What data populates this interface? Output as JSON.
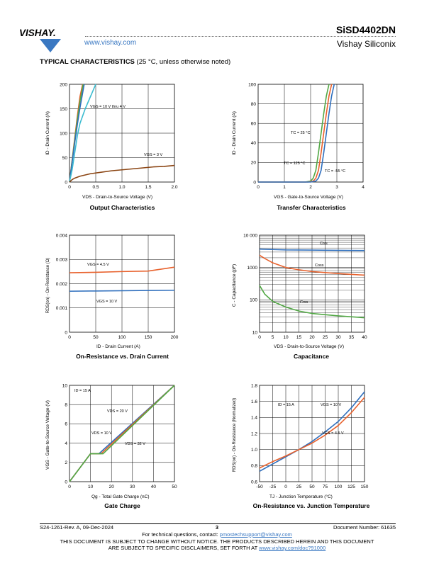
{
  "header": {
    "logo_text": "VISHAY.",
    "website": "www.vishay.com",
    "part_number": "SiSD4402DN",
    "company": "Vishay Siliconix"
  },
  "section": {
    "title": "TYPICAL CHARACTERISTICS",
    "subtitle": "(25 °C, unless otherwise noted)"
  },
  "colors": {
    "blue": "#2f6fbd",
    "orange": "#e8612c",
    "green": "#52a845",
    "cyan": "#3cbcd0",
    "brown": "#8b4513",
    "link": "#3a78c2"
  },
  "chart_data": [
    {
      "id": "output",
      "type": "line",
      "title": "Output Characteristics",
      "xlabel": "VDS - Drain-to-Source Voltage (V)",
      "ylabel": "ID - Drain Current (A)",
      "xlim": [
        0,
        2.0
      ],
      "ylim": [
        0,
        200
      ],
      "xticks": [
        "0",
        "0.5",
        "1.0",
        "1.5",
        "2.0"
      ],
      "yticks": [
        "0",
        "50",
        "100",
        "150",
        "200"
      ],
      "annotations": [
        "VGS = 10 V thru 4 V",
        "VGS = 3 V"
      ],
      "series": [
        {
          "color": "#e8612c",
          "x": [
            0,
            0.05,
            0.1,
            0.15,
            0.2,
            0.25
          ],
          "y": [
            0,
            45,
            90,
            135,
            175,
            200
          ]
        },
        {
          "color": "#52a845",
          "x": [
            0,
            0.05,
            0.1,
            0.15,
            0.2,
            0.26
          ],
          "y": [
            0,
            43,
            86,
            128,
            165,
            200
          ]
        },
        {
          "color": "#2f6fbd",
          "x": [
            0,
            0.05,
            0.1,
            0.15,
            0.2,
            0.28
          ],
          "y": [
            0,
            40,
            80,
            118,
            152,
            200
          ]
        },
        {
          "color": "#3cbcd0",
          "x": [
            0,
            0.05,
            0.1,
            0.15,
            0.2,
            0.3,
            0.4,
            0.5
          ],
          "y": [
            0,
            25,
            60,
            95,
            120,
            150,
            175,
            200
          ]
        },
        {
          "color": "#8b4513",
          "x": [
            0,
            0.05,
            0.1,
            0.2,
            0.4,
            0.6,
            0.8,
            1.0,
            1.2,
            1.4,
            1.6,
            1.8,
            2.0
          ],
          "y": [
            0,
            5,
            8,
            12,
            17,
            20,
            23,
            25,
            27,
            29,
            31,
            32,
            34
          ]
        }
      ]
    },
    {
      "id": "transfer",
      "type": "line",
      "title": "Transfer Characteristics",
      "xlabel": "VGS - Gate-to-Source Voltage (V)",
      "ylabel": "ID - Drain Current (A)",
      "xlim": [
        0,
        4
      ],
      "ylim": [
        0,
        100
      ],
      "xticks": [
        "0",
        "1",
        "2",
        "3",
        "4"
      ],
      "yticks": [
        "0",
        "20",
        "40",
        "60",
        "80",
        "100"
      ],
      "annotations": [
        "TC = 25 °C",
        "TC = 125 °C",
        "TC = -55 °C"
      ],
      "series": [
        {
          "color": "#52a845",
          "x": [
            0,
            1.8,
            2.0,
            2.1,
            2.2,
            2.3,
            2.4,
            2.5,
            2.6,
            2.7
          ],
          "y": [
            0,
            0,
            1,
            4,
            12,
            30,
            50,
            70,
            88,
            100
          ]
        },
        {
          "color": "#e8612c",
          "x": [
            0,
            1.9,
            2.1,
            2.2,
            2.3,
            2.4,
            2.5,
            2.6,
            2.7,
            2.8
          ],
          "y": [
            0,
            0,
            1,
            4,
            12,
            30,
            50,
            70,
            88,
            100
          ]
        },
        {
          "color": "#2f6fbd",
          "x": [
            0,
            2.0,
            2.2,
            2.3,
            2.4,
            2.5,
            2.6,
            2.7,
            2.8,
            2.9
          ],
          "y": [
            0,
            0,
            1,
            4,
            12,
            30,
            50,
            70,
            88,
            100
          ]
        }
      ]
    },
    {
      "id": "rds_vs_id",
      "type": "line",
      "title": "On-Resistance vs. Drain Current",
      "xlabel": "ID - Drain Current (A)",
      "ylabel": "RDS(on) - On-Resistance (Ω)",
      "xlim": [
        0,
        200
      ],
      "ylim": [
        0,
        0.004
      ],
      "xticks": [
        "0",
        "50",
        "100",
        "150",
        "200"
      ],
      "yticks": [
        "0",
        "0.001",
        "0.002",
        "0.003",
        "0.004"
      ],
      "annotations": [
        "VGS = 4.5 V",
        "VGS = 10 V"
      ],
      "series": [
        {
          "color": "#e8612c",
          "x": [
            0,
            50,
            100,
            150,
            175,
            200
          ],
          "y": [
            0.00245,
            0.00247,
            0.0025,
            0.00252,
            0.0026,
            0.00268
          ]
        },
        {
          "color": "#2f6fbd",
          "x": [
            0,
            50,
            100,
            150,
            200
          ],
          "y": [
            0.00169,
            0.0017,
            0.00171,
            0.00172,
            0.00173
          ]
        }
      ]
    },
    {
      "id": "capacitance",
      "type": "line",
      "title": "Capacitance",
      "xlabel": "VDS - Drain-to-Source Voltage (V)",
      "ylabel": "C - Capacitance (pF)",
      "xlim": [
        0,
        40
      ],
      "ylim": [
        10,
        10000
      ],
      "yscale": "log",
      "xticks": [
        "0",
        "5",
        "10",
        "15",
        "20",
        "25",
        "30",
        "35",
        "40"
      ],
      "yticks": [
        "10",
        "100",
        "1000",
        "10 000"
      ],
      "annotations": [
        "Ciss",
        "Coss",
        "Crss"
      ],
      "series": [
        {
          "color": "#2f6fbd",
          "x": [
            0,
            5,
            10,
            20,
            30,
            40
          ],
          "y": [
            3700,
            3600,
            3500,
            3450,
            3400,
            3350
          ]
        },
        {
          "color": "#e8612c",
          "x": [
            0,
            2,
            5,
            10,
            15,
            20,
            30,
            40
          ],
          "y": [
            2400,
            1900,
            1400,
            1000,
            850,
            750,
            650,
            580
          ]
        },
        {
          "color": "#52a845",
          "x": [
            0,
            2,
            5,
            10,
            15,
            20,
            30,
            40
          ],
          "y": [
            280,
            150,
            90,
            60,
            45,
            38,
            32,
            28
          ]
        }
      ]
    },
    {
      "id": "gate_charge",
      "type": "line",
      "title": "Gate Charge",
      "xlabel": "Qg - Total Gate Charge (nC)",
      "ylabel": "VGS - Gate-to-Source Voltage (V)",
      "xlim": [
        0,
        50
      ],
      "ylim": [
        0,
        10
      ],
      "xticks": [
        "0",
        "10",
        "20",
        "30",
        "40",
        "50"
      ],
      "yticks": [
        "0",
        "2",
        "4",
        "6",
        "8",
        "10"
      ],
      "annotations": [
        "ID = 15 A",
        "VDS = 20 V",
        "VDS = 10 V",
        "VDS = 32 V"
      ],
      "series": [
        {
          "color": "#2f6fbd",
          "x": [
            0,
            10,
            14,
            50
          ],
          "y": [
            0,
            2.9,
            2.9,
            10
          ]
        },
        {
          "color": "#e8612c",
          "x": [
            0,
            10,
            15,
            50
          ],
          "y": [
            0,
            2.9,
            2.9,
            10
          ]
        },
        {
          "color": "#52a845",
          "x": [
            0,
            10,
            16,
            50
          ],
          "y": [
            0,
            2.9,
            2.9,
            10
          ]
        }
      ]
    },
    {
      "id": "rds_vs_tj",
      "type": "line",
      "title": "On-Resistance vs. Junction Temperature",
      "xlabel": "TJ - Junction Temperature (°C)",
      "ylabel": "RDS(on) - On-Resistance (Normalized)",
      "xlim": [
        -50,
        150
      ],
      "ylim": [
        0.6,
        1.8
      ],
      "xticks": [
        "-50",
        "-25",
        "0",
        "25",
        "50",
        "75",
        "100",
        "125",
        "150"
      ],
      "yticks": [
        "0.6",
        "0.8",
        "1.0",
        "1.2",
        "1.4",
        "1.6",
        "1.8"
      ],
      "annotations": [
        "ID = 15 A",
        "VGS = 10 V",
        "VGS = 4.5 V"
      ],
      "series": [
        {
          "color": "#2f6fbd",
          "x": [
            -50,
            -25,
            0,
            25,
            50,
            75,
            100,
            125,
            150
          ],
          "y": [
            0.73,
            0.82,
            0.91,
            1.0,
            1.1,
            1.22,
            1.35,
            1.52,
            1.72
          ]
        },
        {
          "color": "#e8612c",
          "x": [
            -50,
            -25,
            0,
            25,
            50,
            75,
            100,
            125,
            150
          ],
          "y": [
            0.77,
            0.85,
            0.92,
            1.0,
            1.08,
            1.18,
            1.3,
            1.46,
            1.65
          ]
        }
      ]
    }
  ],
  "footer": {
    "doc_rev": "S24-1261-Rev. A, 09-Dec-2024",
    "page": "3",
    "doc_number": "Document Number: 61635",
    "contact_prefix": "For technical questions, contact: ",
    "contact_email": "pmostechsupport@vishay.com",
    "disclaimer1": "THIS DOCUMENT IS SUBJECT TO CHANGE WITHOUT NOTICE. THE PRODUCTS DESCRIBED HEREIN AND THIS DOCUMENT",
    "disclaimer2_prefix": "ARE SUBJECT TO SPECIFIC DISCLAIMERS, SET FORTH AT ",
    "disclaimer2_link": "www.vishay.com/doc?91000"
  }
}
